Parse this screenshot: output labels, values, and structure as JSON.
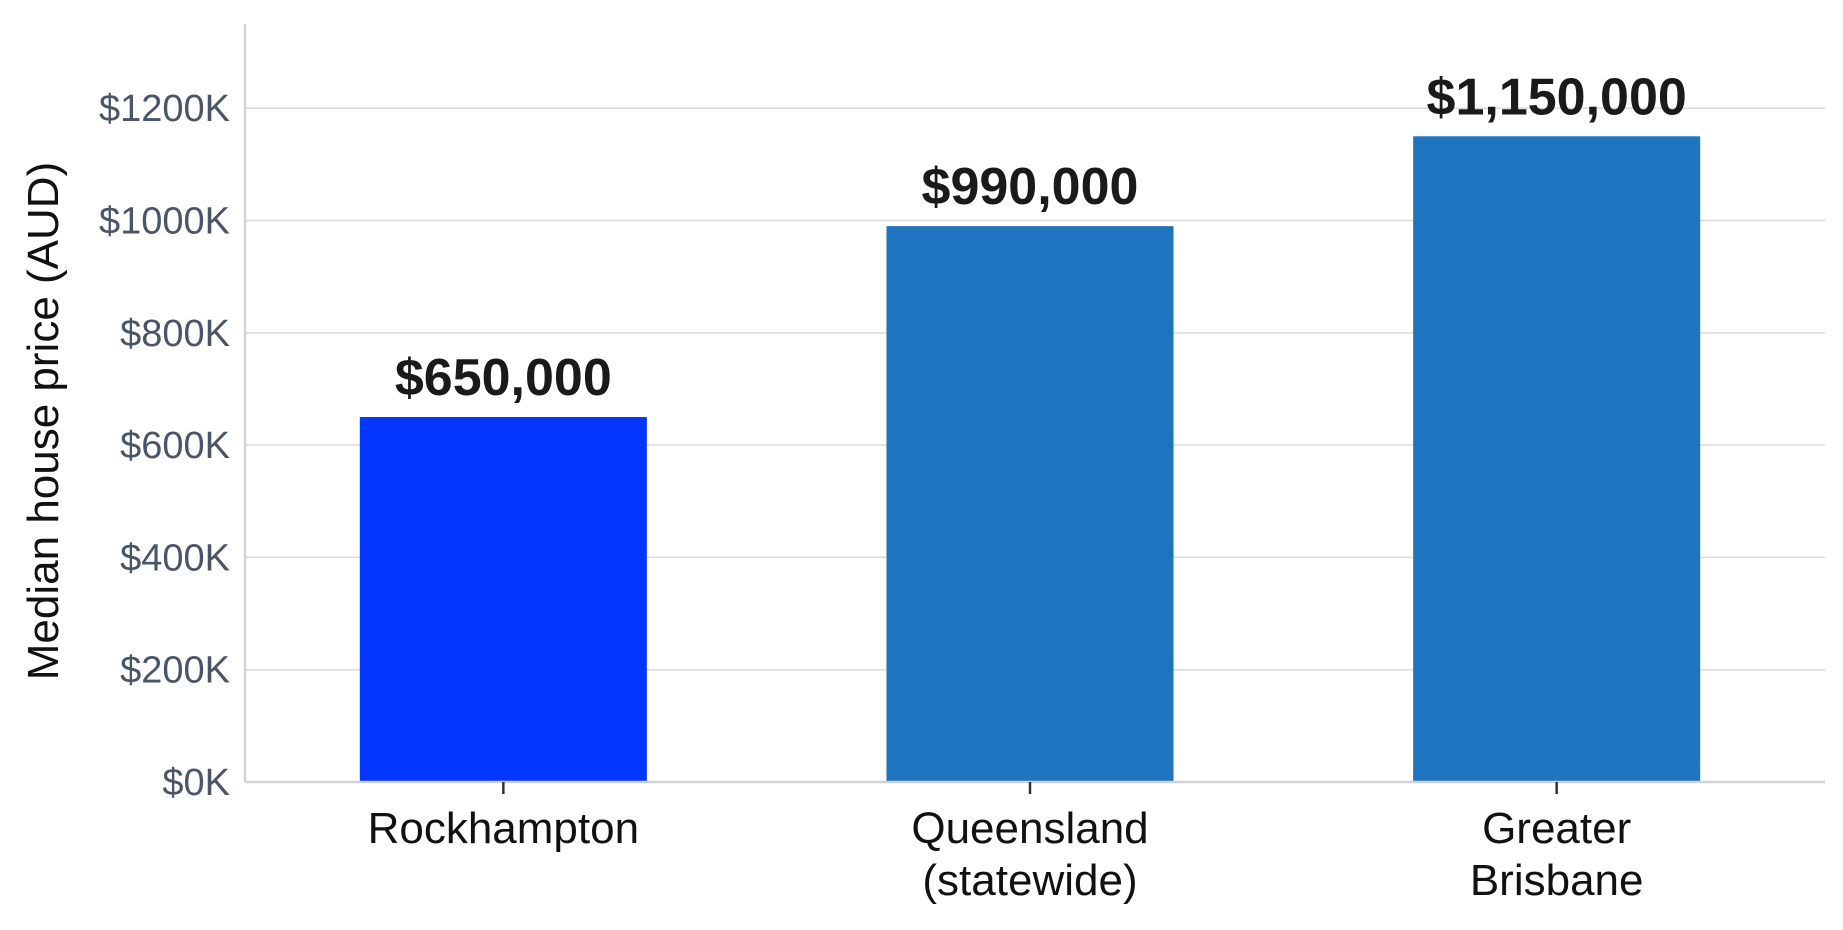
{
  "chart_data": {
    "type": "bar",
    "title": "",
    "xlabel": "",
    "ylabel": "Median house price (AUD)",
    "ylim": [
      0,
      1350000
    ],
    "yticks": [
      0,
      200000,
      400000,
      600000,
      800000,
      1000000,
      1200000
    ],
    "ytick_labels": [
      "$0K",
      "$200K",
      "$400K",
      "$600K",
      "$800K",
      "$1000K",
      "$1200K"
    ],
    "grid": true,
    "categories": [
      [
        "Rockhampton"
      ],
      [
        "Queensland",
        "(statewide)"
      ],
      [
        "Greater",
        "Brisbane"
      ]
    ],
    "values": [
      650000,
      990000,
      1150000
    ],
    "data_labels": [
      "$650,000",
      "$990,000",
      "$1,150,000"
    ],
    "colors": [
      "#0336ff",
      "#1f74bf",
      "#1f74bf"
    ]
  }
}
